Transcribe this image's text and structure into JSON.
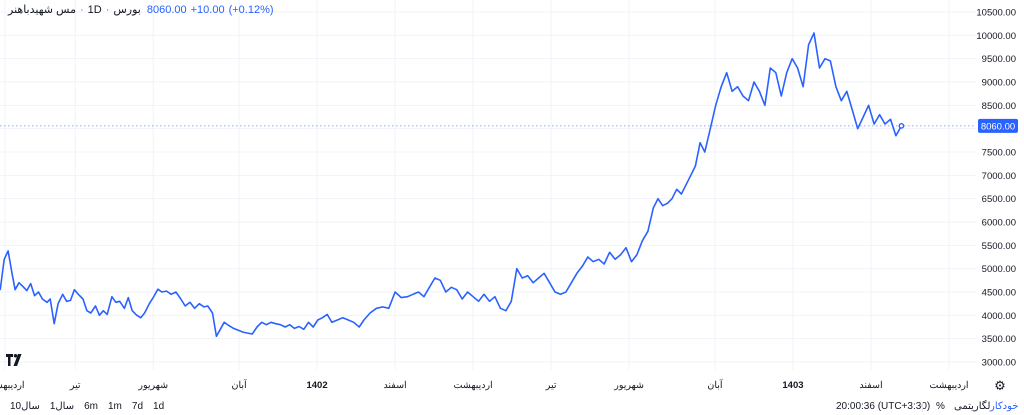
{
  "legend": {
    "symbol": "مس شهیدباهنر",
    "interval": "1D",
    "exchange": "بورس",
    "price": "8060.00",
    "change": "+10.00",
    "change_pct": "(+0.12%)"
  },
  "bottom_bar": {
    "ranges": [
      "10سال",
      "1سال",
      "6m",
      "1m",
      "7d",
      "1d"
    ],
    "clock": "20:00:36 (UTC+3:30)",
    "percent_label": "%",
    "log_label": "لگاریتمی",
    "auto_label": "خودکار"
  },
  "colors": {
    "line": "#2962ff",
    "price_tag": "#2962ff",
    "grid": "#f0f3fa"
  },
  "icons": [
    "tradingview-logo-icon",
    "gear-icon"
  ],
  "chart_data": {
    "type": "line",
    "last_price_label": "8060.00",
    "last_price": 8060,
    "y_ticks": [
      "10500.00",
      "10000.00",
      "9500.00",
      "9000.00",
      "8500.00",
      "8000.00",
      "7500.00",
      "7000.00",
      "6500.00",
      "6000.00",
      "5500.00",
      "5000.00",
      "4500.00",
      "4000.00",
      "3500.00",
      "3000.00"
    ],
    "ylim": [
      2800,
      10700
    ],
    "grid": true,
    "x_ticks": [
      {
        "label": "اردیبهشت",
        "t": 3,
        "bold": false
      },
      {
        "label": "تیر",
        "t": 12,
        "bold": false
      },
      {
        "label": "شهریور",
        "t": 22,
        "bold": false
      },
      {
        "label": "آبان",
        "t": 33,
        "bold": false
      },
      {
        "label": "1402",
        "t": 43,
        "bold": true
      },
      {
        "label": "اسفند",
        "t": 53,
        "bold": false
      },
      {
        "label": "اردیبهشت",
        "t": 63,
        "bold": false
      },
      {
        "label": "تیر",
        "t": 73,
        "bold": false
      },
      {
        "label": "شهریور",
        "t": 83,
        "bold": false
      },
      {
        "label": "آبان",
        "t": 94,
        "bold": false
      },
      {
        "label": "1403",
        "t": 104,
        "bold": true
      },
      {
        "label": "اسفند",
        "t": 114,
        "bold": false
      },
      {
        "label": "اردیبهشت",
        "t": 124,
        "bold": false
      }
    ],
    "t_range": [
      0,
      127
    ],
    "values": [
      [
        0,
        3950
      ],
      [
        0.6,
        4380
      ],
      [
        1.2,
        4500
      ],
      [
        1.8,
        4460
      ],
      [
        2.4,
        4560
      ],
      [
        2.9,
        5200
      ],
      [
        3.4,
        5380
      ],
      [
        3.9,
        4900
      ],
      [
        4.3,
        4550
      ],
      [
        4.8,
        4700
      ],
      [
        5.3,
        4620
      ],
      [
        5.8,
        4530
      ],
      [
        6.3,
        4680
      ],
      [
        6.8,
        4420
      ],
      [
        7.3,
        4500
      ],
      [
        7.8,
        4350
      ],
      [
        8.4,
        4280
      ],
      [
        8.8,
        4350
      ],
      [
        9.3,
        3820
      ],
      [
        9.8,
        4250
      ],
      [
        10.4,
        4450
      ],
      [
        10.9,
        4300
      ],
      [
        11.4,
        4320
      ],
      [
        11.9,
        4550
      ],
      [
        12.4,
        4450
      ],
      [
        13.0,
        4350
      ],
      [
        13.5,
        4100
      ],
      [
        14.0,
        4050
      ],
      [
        14.6,
        4200
      ],
      [
        15.1,
        4000
      ],
      [
        15.6,
        4100
      ],
      [
        16.1,
        4020
      ],
      [
        16.7,
        4400
      ],
      [
        17.2,
        4280
      ],
      [
        17.7,
        4300
      ],
      [
        18.3,
        4150
      ],
      [
        18.8,
        4380
      ],
      [
        19.3,
        4100
      ],
      [
        19.9,
        4000
      ],
      [
        20.4,
        3950
      ],
      [
        20.9,
        4050
      ],
      [
        21.5,
        4250
      ],
      [
        22.0,
        4380
      ],
      [
        22.6,
        4560
      ],
      [
        23.1,
        4500
      ],
      [
        23.7,
        4520
      ],
      [
        24.3,
        4450
      ],
      [
        24.9,
        4500
      ],
      [
        25.5,
        4360
      ],
      [
        26.1,
        4200
      ],
      [
        26.7,
        4280
      ],
      [
        27.3,
        4150
      ],
      [
        27.9,
        4250
      ],
      [
        28.5,
        4180
      ],
      [
        29.0,
        4200
      ],
      [
        29.6,
        4050
      ],
      [
        30.1,
        3550
      ],
      [
        30.6,
        3700
      ],
      [
        31.1,
        3850
      ],
      [
        31.7,
        3780
      ],
      [
        32.3,
        3720
      ],
      [
        32.9,
        3680
      ],
      [
        33.5,
        3640
      ],
      [
        34.1,
        3620
      ],
      [
        34.7,
        3600
      ],
      [
        35.3,
        3750
      ],
      [
        35.9,
        3850
      ],
      [
        36.5,
        3800
      ],
      [
        37.1,
        3850
      ],
      [
        37.7,
        3820
      ],
      [
        38.3,
        3800
      ],
      [
        38.9,
        3750
      ],
      [
        39.5,
        3800
      ],
      [
        40.1,
        3720
      ],
      [
        40.7,
        3760
      ],
      [
        41.3,
        3700
      ],
      [
        41.9,
        3850
      ],
      [
        42.5,
        3750
      ],
      [
        43.1,
        3900
      ],
      [
        43.7,
        3950
      ],
      [
        44.3,
        4020
      ],
      [
        44.9,
        3850
      ],
      [
        45.6,
        3900
      ],
      [
        46.3,
        3950
      ],
      [
        47.0,
        3900
      ],
      [
        47.7,
        3850
      ],
      [
        48.4,
        3750
      ],
      [
        49.0,
        3900
      ],
      [
        49.8,
        4050
      ],
      [
        50.6,
        4150
      ],
      [
        51.4,
        4180
      ],
      [
        52.2,
        4150
      ],
      [
        53.0,
        4500
      ],
      [
        53.8,
        4380
      ],
      [
        54.6,
        4400
      ],
      [
        55.3,
        4450
      ],
      [
        56.0,
        4500
      ],
      [
        56.7,
        4400
      ],
      [
        57.4,
        4600
      ],
      [
        58.1,
        4800
      ],
      [
        58.8,
        4750
      ],
      [
        59.5,
        4500
      ],
      [
        60.2,
        4600
      ],
      [
        60.9,
        4550
      ],
      [
        61.6,
        4350
      ],
      [
        62.3,
        4500
      ],
      [
        63.0,
        4400
      ],
      [
        63.7,
        4300
      ],
      [
        64.4,
        4450
      ],
      [
        65.1,
        4300
      ],
      [
        65.8,
        4400
      ],
      [
        66.5,
        4150
      ],
      [
        67.2,
        4100
      ],
      [
        67.9,
        4300
      ],
      [
        68.6,
        5000
      ],
      [
        69.3,
        4800
      ],
      [
        70.0,
        4850
      ],
      [
        70.7,
        4700
      ],
      [
        71.4,
        4800
      ],
      [
        72.1,
        4900
      ],
      [
        72.8,
        4700
      ],
      [
        73.5,
        4500
      ],
      [
        74.2,
        4450
      ],
      [
        74.9,
        4500
      ],
      [
        75.6,
        4700
      ],
      [
        76.3,
        4900
      ],
      [
        77.0,
        5050
      ],
      [
        77.7,
        5250
      ],
      [
        78.4,
        5150
      ],
      [
        79.1,
        5200
      ],
      [
        79.8,
        5100
      ],
      [
        80.5,
        5350
      ],
      [
        81.2,
        5200
      ],
      [
        81.9,
        5300
      ],
      [
        82.6,
        5450
      ],
      [
        83.3,
        5150
      ],
      [
        84.0,
        5300
      ],
      [
        84.7,
        5600
      ],
      [
        85.4,
        5800
      ],
      [
        86.1,
        6300
      ],
      [
        86.7,
        6500
      ],
      [
        87.3,
        6350
      ],
      [
        87.9,
        6400
      ],
      [
        88.5,
        6500
      ],
      [
        89.1,
        6700
      ],
      [
        89.7,
        6600
      ],
      [
        90.3,
        6800
      ],
      [
        90.9,
        7000
      ],
      [
        91.5,
        7200
      ],
      [
        92.1,
        7700
      ],
      [
        92.7,
        7500
      ],
      [
        93.4,
        8000
      ],
      [
        94.1,
        8500
      ],
      [
        94.8,
        8900
      ],
      [
        95.5,
        9200
      ],
      [
        96.2,
        8800
      ],
      [
        96.9,
        8900
      ],
      [
        97.6,
        8700
      ],
      [
        98.3,
        8600
      ],
      [
        99.0,
        9000
      ],
      [
        99.7,
        8800
      ],
      [
        100.4,
        8500
      ],
      [
        101.1,
        9300
      ],
      [
        101.8,
        9200
      ],
      [
        102.5,
        8700
      ],
      [
        103.2,
        9200
      ],
      [
        103.9,
        9500
      ],
      [
        104.6,
        9300
      ],
      [
        105.3,
        8900
      ],
      [
        106.0,
        9800
      ],
      [
        106.7,
        10050
      ],
      [
        107.4,
        9300
      ],
      [
        108.1,
        9500
      ],
      [
        108.8,
        9450
      ],
      [
        109.5,
        8900
      ],
      [
        110.2,
        8600
      ],
      [
        110.9,
        8800
      ],
      [
        111.6,
        8400
      ],
      [
        112.3,
        8000
      ],
      [
        113.0,
        8250
      ],
      [
        113.7,
        8500
      ],
      [
        114.4,
        8100
      ],
      [
        115.1,
        8300
      ],
      [
        115.8,
        8100
      ],
      [
        116.5,
        8200
      ],
      [
        117.2,
        7850
      ],
      [
        117.9,
        8060
      ]
    ]
  }
}
